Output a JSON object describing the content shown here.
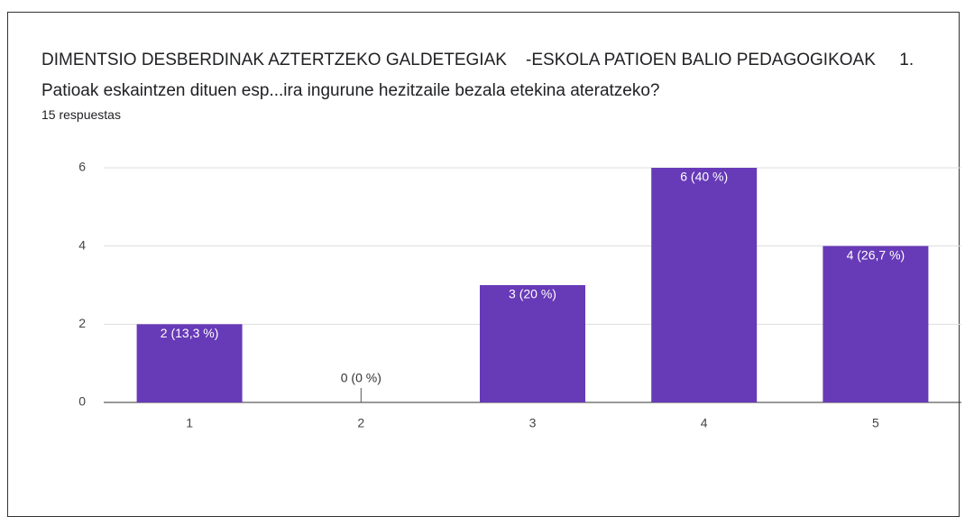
{
  "chart_data": {
    "type": "bar",
    "title": "DIMENTSIO DESBERDINAK AZTERTZEKO GALDETEGIAK    -ESKOLA PATIOEN BALIO PEDAGOGIKOAK     1. Patioak eskaintzen dituen esp...ira ingurune hezitzaile bezala etekina ateratzeko?",
    "subtitle": "15 respuestas",
    "categories": [
      "1",
      "2",
      "3",
      "4",
      "5"
    ],
    "values": [
      2,
      0,
      3,
      6,
      4
    ],
    "value_labels": [
      "2 (13,3 %)",
      "0 (0 %)",
      "3 (20 %)",
      "6 (40 %)",
      "4 (26,7 %)"
    ],
    "color": "#673ab7",
    "ylim": [
      0,
      6
    ],
    "yticks": [
      0,
      2,
      4,
      6
    ],
    "grid": true
  }
}
